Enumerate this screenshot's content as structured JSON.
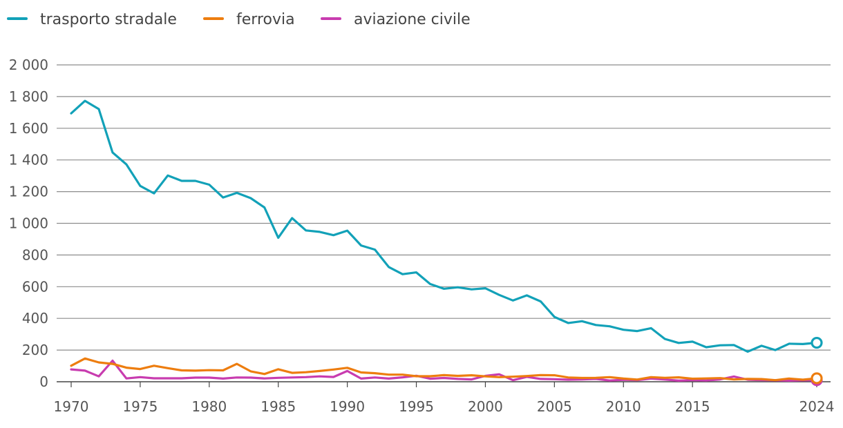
{
  "chart_data": {
    "type": "line",
    "title": "",
    "xlabel": "",
    "ylabel": "",
    "ylim": [
      0,
      2000
    ],
    "xlim": [
      1970,
      2024
    ],
    "y_ticks": [
      0,
      200,
      400,
      600,
      800,
      1000,
      1200,
      1400,
      1600,
      1800,
      2000
    ],
    "y_tick_labels": [
      "0",
      "200",
      "400",
      "600",
      "800",
      "1 000",
      "1 200",
      "1 400",
      "1 600",
      "1 800",
      "2 000"
    ],
    "x_ticks": [
      1970,
      1975,
      1980,
      1985,
      1990,
      1995,
      2000,
      2005,
      2010,
      2015,
      2024
    ],
    "x_tick_labels": [
      "1970",
      "1975",
      "1980",
      "1985",
      "1990",
      "1995",
      "2000",
      "2005",
      "2010",
      "2015",
      "2024"
    ],
    "grid": "horizontal",
    "legend_position": "top-left",
    "last_point_marker": "open-circle",
    "x": [
      1970,
      1971,
      1972,
      1973,
      1974,
      1975,
      1976,
      1977,
      1978,
      1979,
      1980,
      1981,
      1982,
      1983,
      1984,
      1985,
      1986,
      1987,
      1988,
      1989,
      1990,
      1991,
      1992,
      1993,
      1994,
      1995,
      1996,
      1997,
      1998,
      1999,
      2000,
      2001,
      2002,
      2003,
      2004,
      2005,
      2006,
      2007,
      2008,
      2009,
      2010,
      2011,
      2012,
      2013,
      2014,
      2015,
      2016,
      2017,
      2018,
      2019,
      2020,
      2021,
      2022,
      2023,
      2024
    ],
    "series": [
      {
        "name": "trasporto stradale",
        "color": "#12a1b8",
        "values": [
          1694,
          1773,
          1721,
          1447,
          1372,
          1236,
          1189,
          1302,
          1268,
          1268,
          1244,
          1163,
          1192,
          1159,
          1100,
          909,
          1033,
          955,
          946,
          925,
          954,
          860,
          834,
          724,
          679,
          690,
          617,
          587,
          596,
          583,
          590,
          548,
          513,
          545,
          507,
          409,
          371,
          382,
          358,
          350,
          328,
          320,
          338,
          270,
          245,
          253,
          218,
          230,
          232,
          190,
          227,
          200,
          240,
          238,
          246
        ]
      },
      {
        "name": "ferrovia",
        "color": "#ed7d0f",
        "values": [
          101,
          147,
          122,
          113,
          89,
          80,
          101,
          86,
          72,
          70,
          73,
          72,
          113,
          66,
          49,
          79,
          56,
          60,
          68,
          77,
          88,
          59,
          54,
          45,
          45,
          35,
          35,
          42,
          37,
          41,
          34,
          29,
          32,
          36,
          42,
          41,
          27,
          24,
          25,
          29,
          20,
          14,
          29,
          25,
          28,
          19,
          21,
          23,
          15,
          18,
          17,
          10,
          20,
          13,
          22
        ]
      },
      {
        "name": "aviazione civile",
        "color": "#c83caf",
        "values": [
          78,
          70,
          34,
          133,
          21,
          29,
          22,
          22,
          22,
          26,
          26,
          20,
          27,
          26,
          21,
          25,
          27,
          29,
          34,
          30,
          68,
          20,
          27,
          20,
          28,
          38,
          19,
          24,
          18,
          15,
          37,
          47,
          10,
          31,
          18,
          16,
          13,
          15,
          18,
          8,
          12,
          10,
          20,
          14,
          7,
          10,
          8,
          15,
          33,
          13,
          10,
          9,
          7,
          9,
          10
        ]
      }
    ]
  }
}
